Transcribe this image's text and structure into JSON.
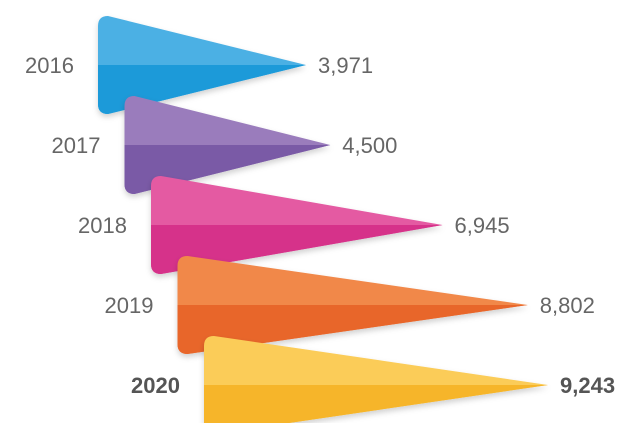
{
  "chart_data": {
    "type": "bar",
    "orientation": "horizontal",
    "style": "pointed arrow bars, stacked diagonally",
    "categories": [
      "2016",
      "2017",
      "2018",
      "2019",
      "2020"
    ],
    "values": [
      3971,
      4500,
      6945,
      8802,
      9243
    ],
    "value_labels": [
      "3,971",
      "4,500",
      "6,945",
      "8,802",
      "9,243"
    ],
    "highlight": "2020",
    "colors": [
      {
        "light": "#4bb0e4",
        "dark": "#1e9ad9"
      },
      {
        "light": "#9a7cbc",
        "dark": "#7a5aa6"
      },
      {
        "light": "#e45aa2",
        "dark": "#d6338a"
      },
      {
        "light": "#f1884a",
        "dark": "#e8662c"
      },
      {
        "light": "#fbcc58",
        "dark": "#f6b52c"
      }
    ],
    "title": "",
    "xlabel": "",
    "ylabel": ""
  }
}
